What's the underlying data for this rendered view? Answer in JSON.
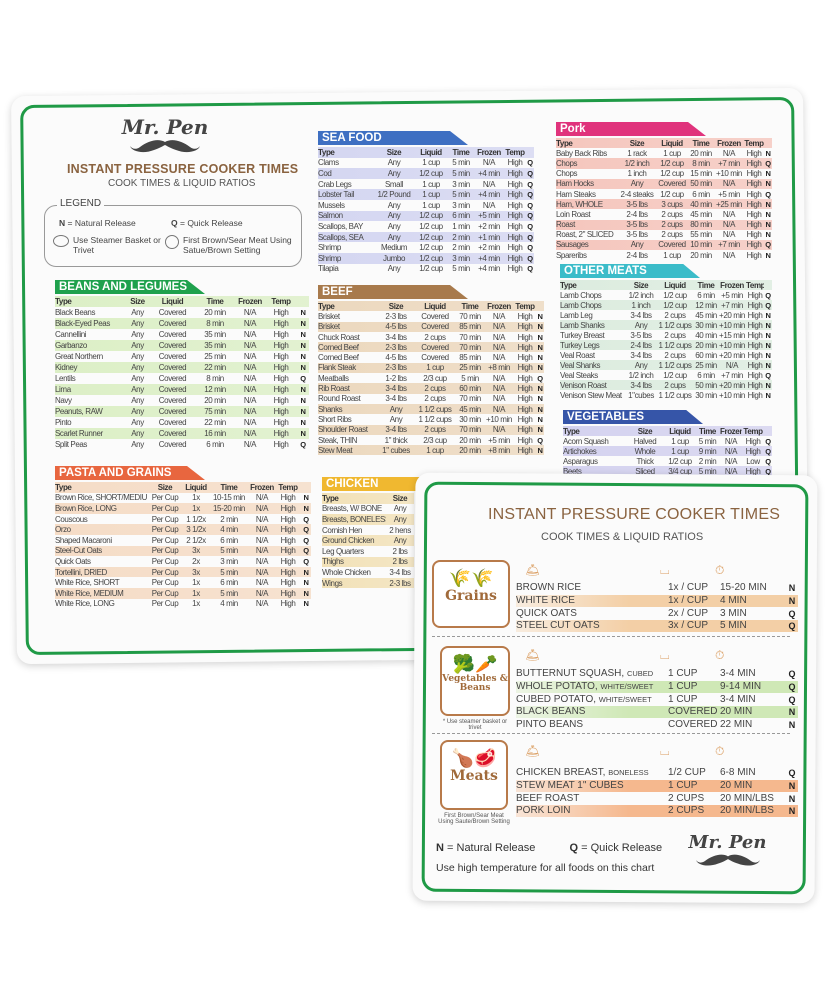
{
  "back": {
    "brand": "Mr. Pen",
    "title": "INSTANT PRESSURE COOKER TIMES",
    "subtitle": "COOK TIMES & LIQUID RATIOS",
    "legend": {
      "title": "LEGEND",
      "n_key": "N",
      "n_label": "= Natural Release",
      "q_key": "Q",
      "q_label": "= Quick Release",
      "steamer": "Use Steamer Basket or Trivet",
      "brown": "First Brown/Sear Meat Using Satue/Brown Setting"
    },
    "tables": {
      "beans": {
        "title": "BEANS AND LEGUMES",
        "color": "#1fa14d",
        "stripe": "#dcefc6",
        "header": [
          "Type",
          "Size",
          "Liquid",
          "Time",
          "Frozen",
          "Temp",
          ""
        ],
        "rows": [
          [
            "Black Beans",
            "Any",
            "Covered",
            "20 min",
            "N/A",
            "High",
            "N"
          ],
          [
            "Black-Eyed Peas",
            "Any",
            "Covered",
            "8 min",
            "N/A",
            "High",
            "N"
          ],
          [
            "Cannellini",
            "Any",
            "Covered",
            "35 min",
            "N/A",
            "High",
            "N"
          ],
          [
            "Garbanzo",
            "Any",
            "Covered",
            "35 min",
            "N/A",
            "High",
            "N"
          ],
          [
            "Great Northern",
            "Any",
            "Covered",
            "25 min",
            "N/A",
            "High",
            "N"
          ],
          [
            "Kidney",
            "Any",
            "Covered",
            "22 min",
            "N/A",
            "High",
            "N"
          ],
          [
            "Lentils",
            "Any",
            "Covered",
            "8 min",
            "N/A",
            "High",
            "Q"
          ],
          [
            "Lima",
            "Any",
            "Covered",
            "12 min",
            "N/A",
            "High",
            "N"
          ],
          [
            "Navy",
            "Any",
            "Covered",
            "20 min",
            "N/A",
            "High",
            "N"
          ],
          [
            "Peanuts, RAW",
            "Any",
            "Covered",
            "75 min",
            "N/A",
            "High",
            "N"
          ],
          [
            "Pinto",
            "Any",
            "Covered",
            "22 min",
            "N/A",
            "High",
            "N"
          ],
          [
            "Scarlet Runner",
            "Any",
            "Covered",
            "16 min",
            "N/A",
            "High",
            "N"
          ],
          [
            "Split Peas",
            "Any",
            "Covered",
            "6 min",
            "N/A",
            "High",
            "Q"
          ]
        ]
      },
      "pasta": {
        "title": "PASTA AND GRAINS",
        "color": "#e8663f",
        "stripe": "#f5dcc6",
        "header": [
          "Type",
          "Size",
          "Liquid",
          "Time",
          "Frozen",
          "Temp",
          ""
        ],
        "rows": [
          [
            "Brown Rice, SHORT/MEDIUM",
            "Per Cup",
            "1x",
            "10-15 min",
            "N/A",
            "High",
            "N"
          ],
          [
            "Brown Rice, LONG",
            "Per Cup",
            "1x",
            "15-20 min",
            "N/A",
            "High",
            "N"
          ],
          [
            "Couscous",
            "Per Cup",
            "1 1/2x",
            "2 min",
            "N/A",
            "High",
            "Q"
          ],
          [
            "Orzo",
            "Per Cup",
            "3 1/2x",
            "4 min",
            "N/A",
            "High",
            "Q"
          ],
          [
            "Shaped Macaroni",
            "Per Cup",
            "2 1/2x",
            "6 min",
            "N/A",
            "High",
            "Q"
          ],
          [
            "Steel-Cut Oats",
            "Per Cup",
            "3x",
            "5 min",
            "N/A",
            "High",
            "Q"
          ],
          [
            "Quick Oats",
            "Per Cup",
            "2x",
            "3 min",
            "N/A",
            "High",
            "Q"
          ],
          [
            "Tortellini, DRIED",
            "Per Cup",
            "3x",
            "5 min",
            "N/A",
            "High",
            "N"
          ],
          [
            "White Rice, SHORT",
            "Per Cup",
            "1x",
            "6 min",
            "N/A",
            "High",
            "N"
          ],
          [
            "White Rice, MEDIUM",
            "Per Cup",
            "1x",
            "5 min",
            "N/A",
            "High",
            "N"
          ],
          [
            "White Rice, LONG",
            "Per Cup",
            "1x",
            "4 min",
            "N/A",
            "High",
            "N"
          ]
        ]
      },
      "seafood": {
        "title": "SEA FOOD",
        "color": "#3e6fc2",
        "stripe": "#d4d6f1",
        "header": [
          "Type",
          "Size",
          "Liquid",
          "Time",
          "Frozen",
          "Temp",
          ""
        ],
        "rows": [
          [
            "Clams",
            "Any",
            "1 cup",
            "5 min",
            "N/A",
            "High",
            "Q"
          ],
          [
            "Cod",
            "Any",
            "1/2 cup",
            "5 min",
            "+4 min",
            "High",
            "Q"
          ],
          [
            "Crab Legs",
            "Small",
            "1 cup",
            "3 min",
            "N/A",
            "High",
            "Q"
          ],
          [
            "Lobster Tail",
            "1/2 Pound",
            "1 cup",
            "5 min",
            "+4 min",
            "High",
            "Q"
          ],
          [
            "Mussels",
            "Any",
            "1 cup",
            "3 min",
            "N/A",
            "High",
            "Q"
          ],
          [
            "Salmon",
            "Any",
            "1/2 cup",
            "6 min",
            "+5 min",
            "High",
            "Q"
          ],
          [
            "Scallops, BAY",
            "Any",
            "1/2 cup",
            "1 min",
            "+2 min",
            "High",
            "Q"
          ],
          [
            "Scallops, SEA",
            "Any",
            "1/2 cup",
            "2 min",
            "+1 min",
            "High",
            "Q"
          ],
          [
            "Shrimp",
            "Medium",
            "1/2 cup",
            "2 min",
            "+2 min",
            "High",
            "Q"
          ],
          [
            "Shrimp",
            "Jumbo",
            "1/2 cup",
            "3 min",
            "+4 min",
            "High",
            "Q"
          ],
          [
            "Tilapia",
            "Any",
            "1/2 cup",
            "5 min",
            "+4 min",
            "High",
            "Q"
          ]
        ]
      },
      "beef": {
        "title": "BEEF",
        "color": "#a87a4c",
        "stripe": "#ecd8be",
        "header": [
          "Type",
          "Size",
          "Liquid",
          "Time",
          "Frozen",
          "Temp",
          ""
        ],
        "rows": [
          [
            "Brisket",
            "2-3 lbs",
            "Covered",
            "70 min",
            "N/A",
            "High",
            "N"
          ],
          [
            "Brisket",
            "4-5 lbs",
            "Covered",
            "85 min",
            "N/A",
            "High",
            "N"
          ],
          [
            "Chuck Roast",
            "3-4 lbs",
            "2 cups",
            "70 min",
            "N/A",
            "High",
            "N"
          ],
          [
            "Corned Beef",
            "2-3 lbs",
            "Covered",
            "70 min",
            "N/A",
            "High",
            "N"
          ],
          [
            "Corned Beef",
            "4-5 lbs",
            "Covered",
            "85 min",
            "N/A",
            "High",
            "N"
          ],
          [
            "Flank Steak",
            "2-3 lbs",
            "1 cup",
            "25 min",
            "+8 min",
            "High",
            "N"
          ],
          [
            "Meatballs",
            "1-2 lbs",
            "2/3 cup",
            "5 min",
            "N/A",
            "High",
            "Q"
          ],
          [
            "Rib Roast",
            "3-4 lbs",
            "2 cups",
            "60 min",
            "N/A",
            "High",
            "N"
          ],
          [
            "Round Roast",
            "3-4 lbs",
            "2 cups",
            "70 min",
            "N/A",
            "High",
            "N"
          ],
          [
            "Shanks",
            "Any",
            "1 1/2 cups",
            "45 min",
            "N/A",
            "High",
            "N"
          ],
          [
            "Short Ribs",
            "Any",
            "1 1/2 cups",
            "30 min",
            "+10 min",
            "High",
            "N"
          ],
          [
            "Shoulder Roast",
            "3-4 lbs",
            "2 cups",
            "70 min",
            "N/A",
            "High",
            "N"
          ],
          [
            "Steak, THIN",
            "1\" thick",
            "2/3 cup",
            "20 min",
            "+5 min",
            "High",
            "Q"
          ],
          [
            "Stew Meat",
            "1\" cubes",
            "1 cup",
            "20 min",
            "+8 min",
            "High",
            "N"
          ]
        ]
      },
      "chicken": {
        "title": "CHICKEN",
        "color": "#f0b830",
        "stripe": "#f2e1b7",
        "header": [
          "Type",
          "Size"
        ],
        "rows": [
          [
            "Breasts, W/ BONE",
            "Any"
          ],
          [
            "Breasts, BONELESS",
            "Any"
          ],
          [
            "Cornish Hen",
            "2 hens"
          ],
          [
            "Ground Chicken",
            "Any"
          ],
          [
            "Leg Quarters",
            "2 lbs"
          ],
          [
            "Thighs",
            "2 lbs"
          ],
          [
            "Whole Chicken",
            "3-4 lbs"
          ],
          [
            "Wings",
            "2-3 lbs"
          ]
        ]
      },
      "pork": {
        "title": "Pork",
        "color": "#e0337c",
        "stripe": "#f5c6bd",
        "header": [
          "Type",
          "Size",
          "Liquid",
          "Time",
          "Frozen",
          "Temp",
          ""
        ],
        "rows": [
          [
            "Baby Back Ribs",
            "1 rack",
            "1 cup",
            "20 min",
            "N/A",
            "High",
            "N"
          ],
          [
            "Chops",
            "1/2 inch",
            "1/2 cup",
            "8 min",
            "+7 min",
            "High",
            "Q"
          ],
          [
            "Chops",
            "1 inch",
            "1/2 cup",
            "15 min",
            "+10 min",
            "High",
            "N"
          ],
          [
            "Ham Hocks",
            "Any",
            "Covered",
            "50 min",
            "N/A",
            "High",
            "N"
          ],
          [
            "Ham Steaks",
            "2-4 steaks",
            "1/2 cup",
            "6 min",
            "+5 min",
            "High",
            "Q"
          ],
          [
            "Ham, WHOLE",
            "3-5 lbs",
            "3 cups",
            "40 min",
            "+25 min",
            "High",
            "N"
          ],
          [
            "Loin Roast",
            "2-4 lbs",
            "2 cups",
            "45 min",
            "N/A",
            "High",
            "N"
          ],
          [
            "Roast",
            "3-5 lbs",
            "2 cups",
            "80 min",
            "N/A",
            "High",
            "N"
          ],
          [
            "Roast, 2\" SLICED",
            "3-5 lbs",
            "2 cups",
            "55 min",
            "N/A",
            "High",
            "N"
          ],
          [
            "Sausages",
            "Any",
            "Covered",
            "10 min",
            "+7 min",
            "High",
            "Q"
          ],
          [
            "Spareribs",
            "2-4 lbs",
            "1 cup",
            "20 min",
            "N/A",
            "High",
            "N"
          ]
        ]
      },
      "other": {
        "title": "OTHER MEATS",
        "color": "#3bbcc9",
        "stripe": "#dcecdf",
        "header": [
          "Type",
          "Size",
          "Liquid",
          "Time",
          "Frozen",
          "Temp",
          ""
        ],
        "rows": [
          [
            "Lamb Chops",
            "1/2 inch",
            "1/2 cup",
            "6 min",
            "+5 min",
            "High",
            "Q"
          ],
          [
            "Lamb Chops",
            "1 inch",
            "1/2 cup",
            "12 min",
            "+7 min",
            "High",
            "Q"
          ],
          [
            "Lamb Leg",
            "3-4 lbs",
            "2 cups",
            "45 min",
            "+20 min",
            "High",
            "N"
          ],
          [
            "Lamb Shanks",
            "Any",
            "1 1/2 cups",
            "30 min",
            "+10 min",
            "High",
            "N"
          ],
          [
            "Turkey Breast",
            "3-5 lbs",
            "2 cups",
            "40 min",
            "+15 min",
            "High",
            "N"
          ],
          [
            "Turkey Legs",
            "2-4 lbs",
            "1 1/2 cups",
            "20 min",
            "+10 min",
            "High",
            "N"
          ],
          [
            "Veal Roast",
            "3-4 lbs",
            "2 cups",
            "60 min",
            "+20 min",
            "High",
            "N"
          ],
          [
            "Veal Shanks",
            "Any",
            "1 1/2 cups",
            "25 min",
            "N/A",
            "High",
            "N"
          ],
          [
            "Veal Steaks",
            "1/2 inch",
            "1/2 cup",
            "6 min",
            "+7 min",
            "High",
            "Q"
          ],
          [
            "Venison Roast",
            "3-4 lbs",
            "2 cups",
            "50 min",
            "+20 min",
            "High",
            "N"
          ],
          [
            "Venison Stew Meat",
            "1\"cubes",
            "1 1/2 cups",
            "30 min",
            "+10 min",
            "High",
            "N"
          ]
        ]
      },
      "veg": {
        "title": "VEGETABLES",
        "color": "#3655a8",
        "stripe": "#d4d2ef",
        "header": [
          "Type",
          "Size",
          "Liquid",
          "Time",
          "Frozen",
          "Temp",
          ""
        ],
        "rows": [
          [
            "Acorn Squash",
            "Halved",
            "1 cup",
            "5 min",
            "N/A",
            "High",
            "Q"
          ],
          [
            "Artichokes",
            "Whole",
            "1 cup",
            "9 min",
            "N/A",
            "High",
            "Q"
          ],
          [
            "Asparagus",
            "Thick",
            "1/2 cup",
            "2 min",
            "N/A",
            "Low",
            "Q"
          ],
          [
            "Beets",
            "Sliced",
            "3/4 cup",
            "5 min",
            "N/A",
            "High",
            "Q"
          ]
        ]
      }
    }
  },
  "front": {
    "title": "INSTANT PRESSURE COOKER TIMES",
    "subtitle": "COOK TIMES & LIQUID RATIOS",
    "groups": [
      {
        "label": "Grains",
        "stripe": "#f3cfa6",
        "note": "",
        "rows": [
          [
            "BROWN RICE",
            "1x / CUP",
            "15-20 MIN",
            "N"
          ],
          [
            "WHITE RICE",
            "1x / CUP",
            "4 MIN",
            "N"
          ],
          [
            "QUICK OATS",
            "2x / CUP",
            "3 MIN",
            "Q"
          ],
          [
            "STEEL CUT OATS",
            "3x / CUP",
            "5 MIN",
            "Q"
          ]
        ]
      },
      {
        "label": "Vegetables & Beans",
        "stripe": "#cfe8b6",
        "note": "* Use steamer basket or trivet",
        "rows": [
          [
            "BUTTERNUT SQUASH, CUBED",
            "1 CUP",
            "3-4 MIN",
            "Q"
          ],
          [
            "WHOLE POTATO, WHITE/SWEET",
            "1 CUP",
            "9-14 MIN",
            "Q"
          ],
          [
            "CUBED POTATO, WHITE/SWEET",
            "1 CUP",
            "3-4 MIN",
            "Q"
          ],
          [
            "BLACK BEANS",
            "COVERED",
            "20 MIN",
            "N"
          ],
          [
            "PINTO BEANS",
            "COVERED",
            "22 MIN",
            "N"
          ]
        ]
      },
      {
        "label": "Meats",
        "stripe": "#f5b88e",
        "note": "First Brown/Sear Meat Using Saute/Brown Setting",
        "rows": [
          [
            "CHICKEN BREAST, BONELESS",
            "1/2 CUP",
            "6-8 MIN",
            "Q"
          ],
          [
            "STEW MEAT 1\" CUBES",
            "1 CUP",
            "20 MIN",
            "N"
          ],
          [
            "BEEF ROAST",
            "2 CUPS",
            "20 MIN/LBS",
            "N"
          ],
          [
            "PORK LOIN",
            "2 CUPS",
            "20 MIN/LBS",
            "N"
          ]
        ]
      }
    ],
    "legend_n": "N",
    "legend_n_label": "= Natural Release",
    "legend_q": "Q",
    "legend_q_label": "= Quick Release",
    "footnote": "Use high temperature for all foods on this chart",
    "brand": "Mr. Pen"
  }
}
